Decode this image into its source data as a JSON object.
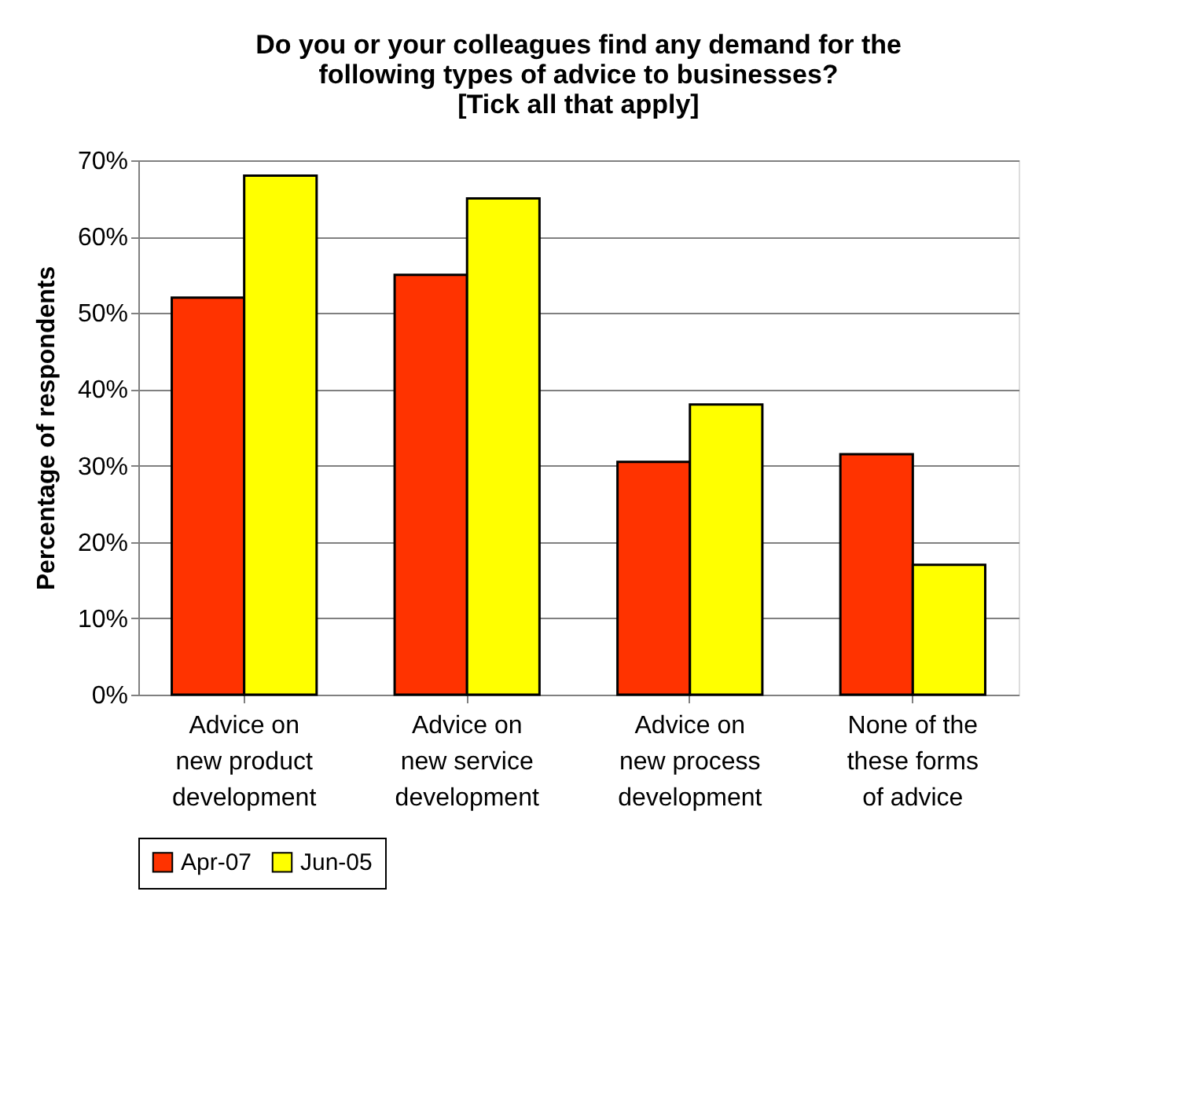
{
  "chart_data": {
    "type": "bar",
    "title": "Do you or your colleagues find any demand for the\nfollowing types of advice to businesses?\n[Tick all that apply]",
    "ylabel": "Percentage of respondents",
    "categories": [
      "Advice on new product development",
      "Advice on new service development",
      "Advice on new process development",
      "None of the these forms of advice"
    ],
    "series": [
      {
        "name": "Apr-07",
        "color": "#ff3300",
        "values": [
          52,
          55,
          30.5,
          31.5
        ]
      },
      {
        "name": "Jun-05",
        "color": "#ffff00",
        "values": [
          68,
          65,
          38,
          17
        ]
      }
    ],
    "ylim": [
      0,
      70
    ],
    "yticks": [
      {
        "value": 0,
        "label": "0%"
      },
      {
        "value": 10,
        "label": "10%"
      },
      {
        "value": 20,
        "label": "20%"
      },
      {
        "value": 30,
        "label": "30%"
      },
      {
        "value": 40,
        "label": "40%"
      },
      {
        "value": 50,
        "label": "50%"
      },
      {
        "value": 60,
        "label": "60%"
      },
      {
        "value": 70,
        "label": "70%"
      }
    ],
    "grid": "y",
    "legend": "bottom"
  }
}
